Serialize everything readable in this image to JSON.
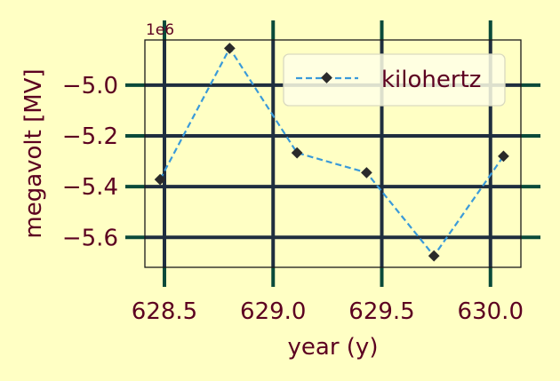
{
  "chart_data": {
    "type": "line",
    "title": "",
    "xlabel": "year (y)",
    "ylabel": "megavolt [MV]",
    "y_offset_label": "1e6",
    "xlim": [
      628.41,
      630.14
    ],
    "ylim": [
      -5.718,
      -4.822
    ],
    "x_ticks": [
      628.5,
      629.0,
      629.5,
      630.0
    ],
    "x_tick_labels": [
      "628.5",
      "629.0",
      "629.5",
      "630.0"
    ],
    "y_ticks": [
      -5.0,
      -5.2,
      -5.4,
      -5.6
    ],
    "y_tick_labels": [
      "−5.0",
      "−5.2",
      "−5.4",
      "−5.6"
    ],
    "grid": true,
    "legend_position": "top-right",
    "colors": {
      "background": "#ffffc4",
      "line": "#3a9ad9",
      "marker": "#2a2a2a",
      "grid_x": "#1f2e3f",
      "grid_y": "#1f2e3f",
      "tick_x": "#0a4a3a",
      "tick_y": "#0a4a3a",
      "text": "#5c0020"
    },
    "series": [
      {
        "name": "kilohertz",
        "x": [
          628.48,
          628.8,
          629.11,
          629.43,
          629.74,
          630.06
        ],
        "y": [
          -5.372,
          -4.855,
          -5.267,
          -5.345,
          -5.673,
          -5.28
        ]
      }
    ]
  }
}
